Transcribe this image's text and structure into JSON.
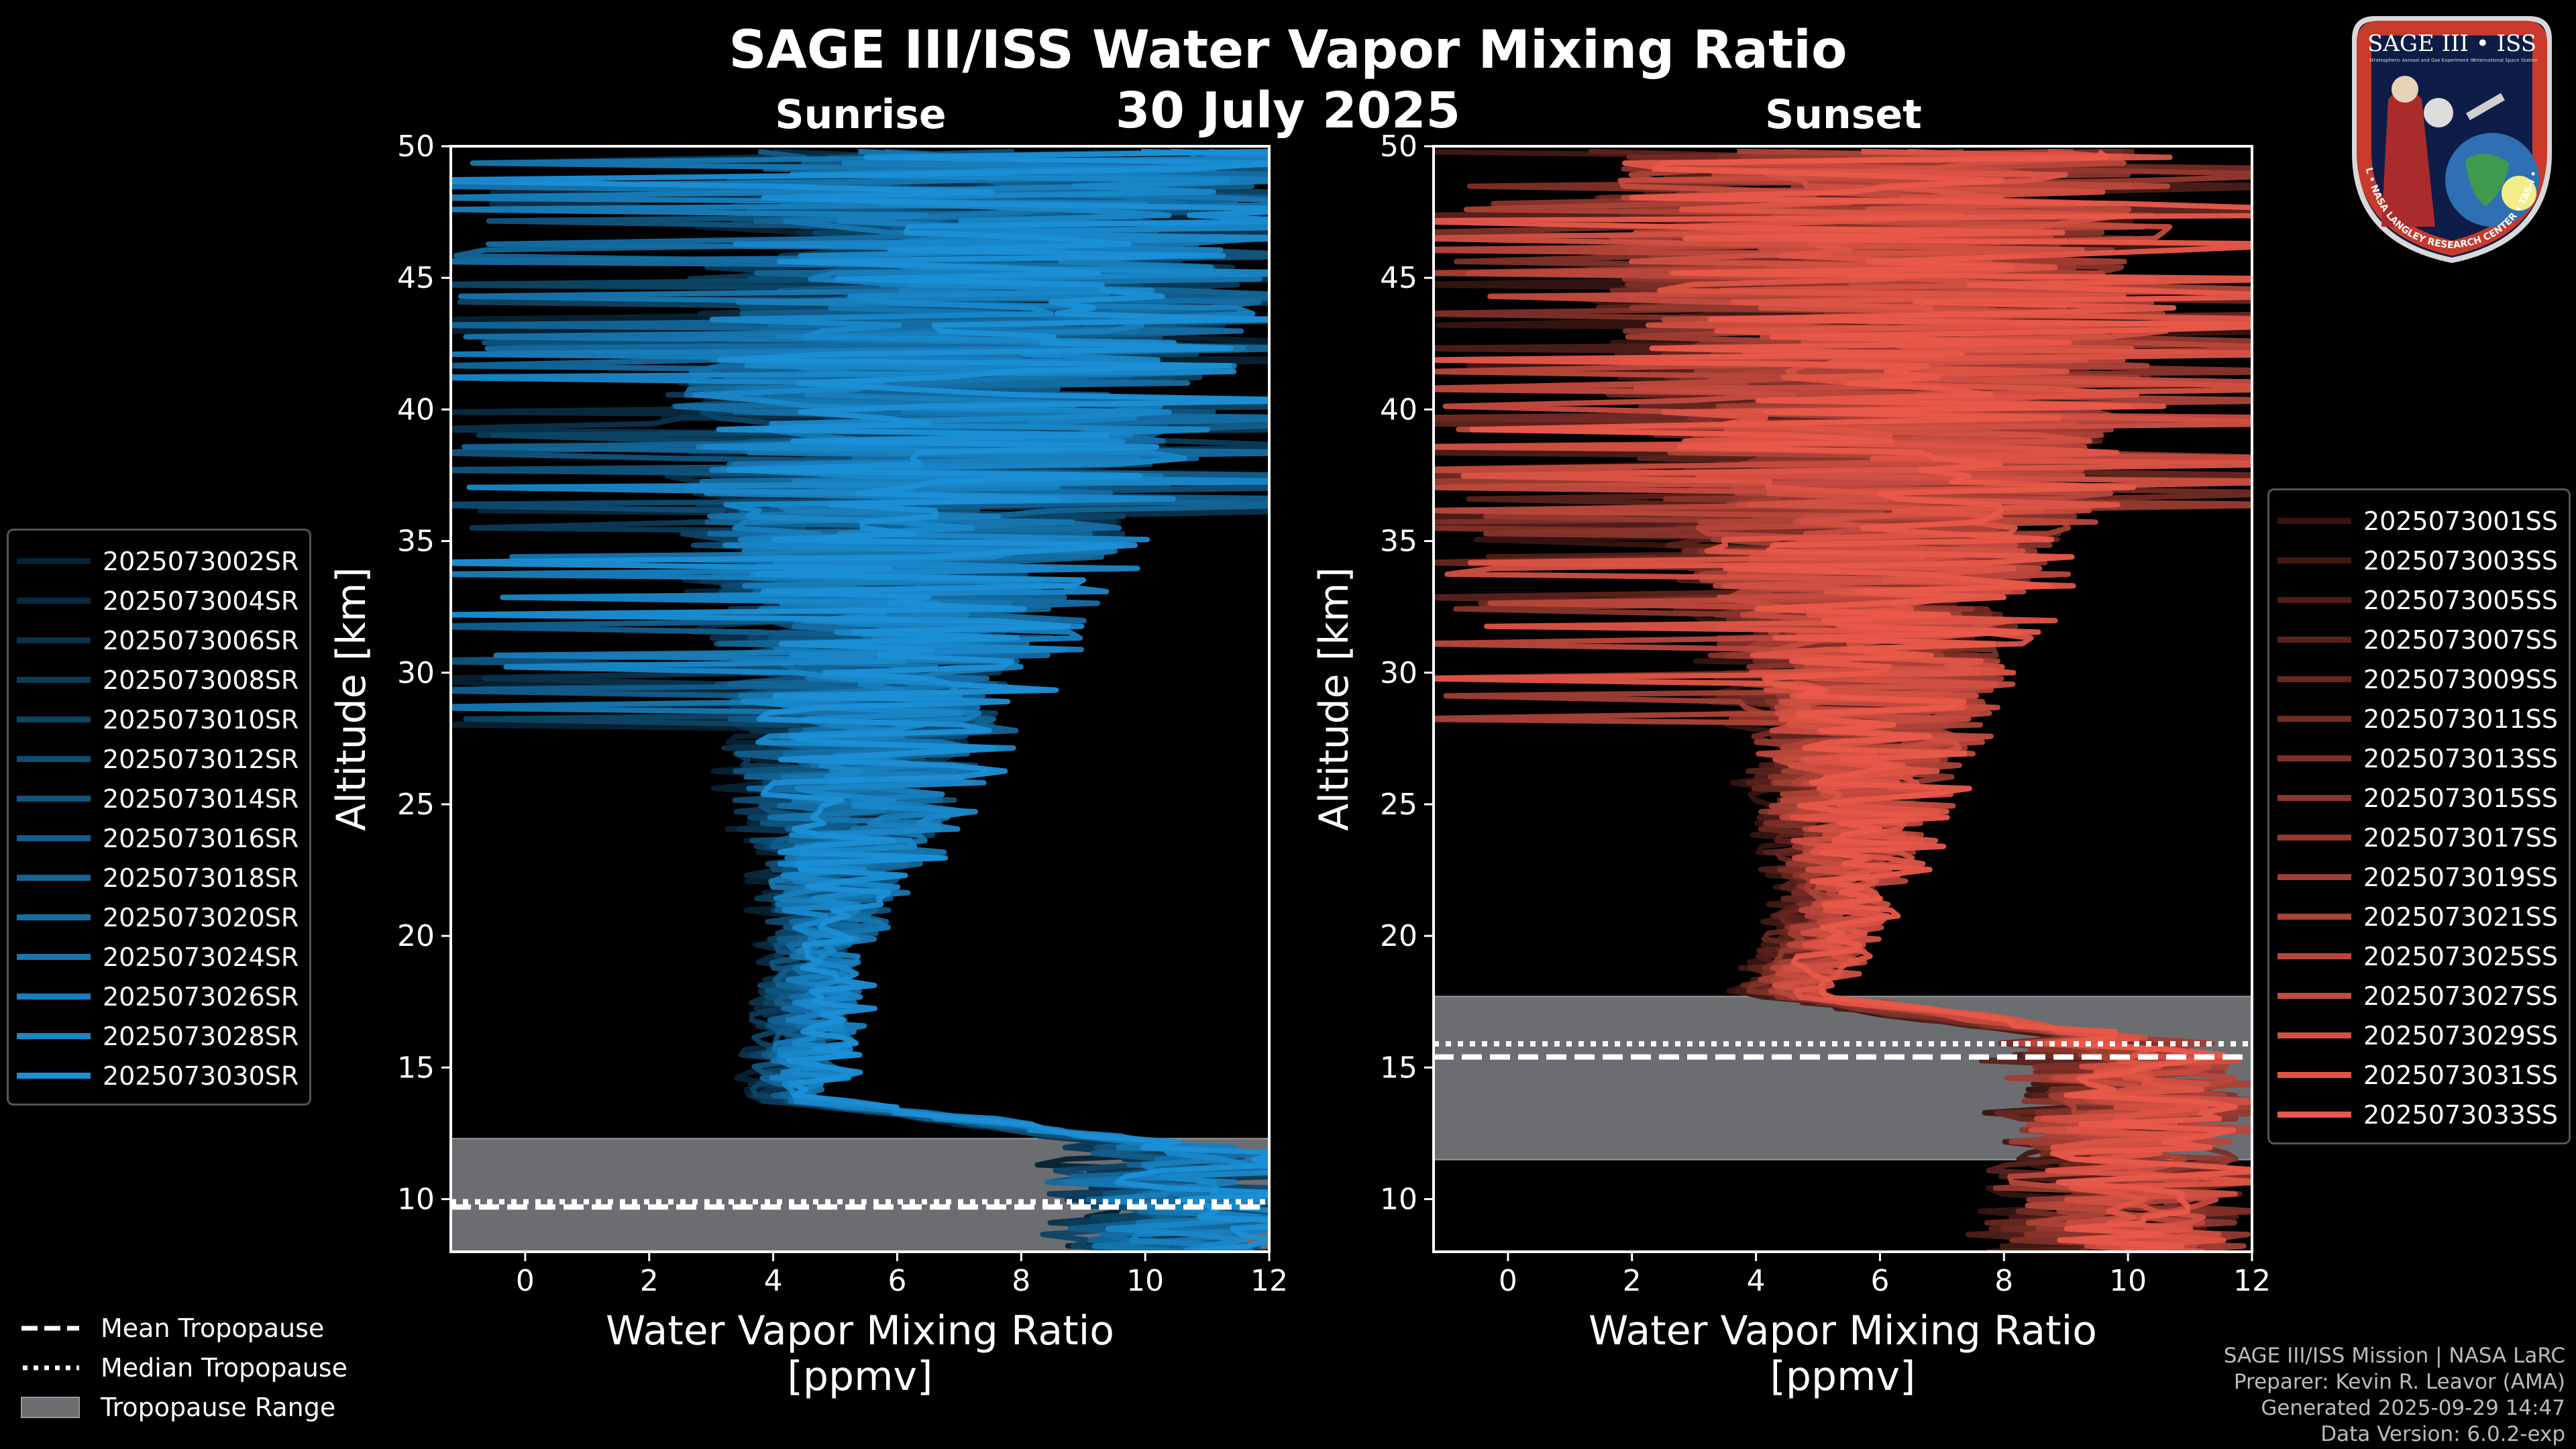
{
  "title": "SAGE III/ISS Water Vapor Mixing Ratio",
  "date": "30 July 2025",
  "colors": {
    "sunrise": "#1b8fd6",
    "sunset": "#e9594a",
    "range": "#6b6d70",
    "background": "#000000"
  },
  "chart_data": [
    {
      "type": "line",
      "title": "Sunrise",
      "xlabel": "Water Vapor Mixing Ratio\n[ppmv]",
      "xlabel_lines": [
        "Water Vapor Mixing Ratio",
        "[ppmv]"
      ],
      "ylabel": "Altitude [km]",
      "xlim": [
        -1.2,
        12
      ],
      "ylim": [
        8,
        50
      ],
      "xticks": [
        0,
        2,
        4,
        6,
        8,
        10,
        12
      ],
      "yticks": [
        10,
        15,
        20,
        25,
        30,
        35,
        40,
        45,
        50
      ],
      "series": [
        "2025073002SR",
        "2025073004SR",
        "2025073006SR",
        "2025073008SR",
        "2025073010SR",
        "2025073012SR",
        "2025073014SR",
        "2025073016SR",
        "2025073018SR",
        "2025073020SR",
        "2025073024SR",
        "2025073026SR",
        "2025073028SR",
        "2025073030SR"
      ],
      "profile": {
        "tropopause_x": 4.3,
        "tropopause_y": 13,
        "mid_x": 4.8,
        "mid_y": 20,
        "high_x": 6.8,
        "top_x": 8,
        "lower_x": 10.5
      },
      "tropopause": {
        "mean": 9.7,
        "median": 9.9,
        "range": [
          8,
          12.3
        ]
      }
    },
    {
      "type": "line",
      "title": "Sunset",
      "xlabel": "Water Vapor Mixing Ratio\n[ppmv]",
      "xlabel_lines": [
        "Water Vapor Mixing Ratio",
        "[ppmv]"
      ],
      "ylabel": "Altitude [km]",
      "xlim": [
        -1.2,
        12
      ],
      "ylim": [
        8,
        50
      ],
      "xticks": [
        0,
        2,
        4,
        6,
        8,
        10,
        12
      ],
      "yticks": [
        10,
        15,
        20,
        25,
        30,
        35,
        40,
        45,
        50
      ],
      "series": [
        "2025073001SS",
        "2025073003SS",
        "2025073005SS",
        "2025073007SS",
        "2025073009SS",
        "2025073011SS",
        "2025073013SS",
        "2025073015SS",
        "2025073017SS",
        "2025073019SS",
        "2025073021SS",
        "2025073025SS",
        "2025073027SS",
        "2025073029SS",
        "2025073031SS",
        "2025073033SS"
      ],
      "profile": {
        "tropopause_x": 4.5,
        "tropopause_y": 17,
        "mid_x": 5.4,
        "mid_y": 22,
        "high_x": 6.2,
        "top_x": 6,
        "lower_x": 10
      },
      "tropopause": {
        "mean": 15.4,
        "median": 15.9,
        "range": [
          11.5,
          17.7
        ]
      }
    }
  ],
  "legend_bottom": [
    {
      "label": "Mean Tropopause",
      "style": "dashed"
    },
    {
      "label": "Median Tropopause",
      "style": "dotted"
    },
    {
      "label": "Tropopause Range",
      "style": "patch"
    }
  ],
  "credits": [
    "SAGE III/ISS Mission | NASA LaRC",
    "Preparer: Kevin R. Leavor (AMA)",
    "Generated 2025-09-29 14:47",
    "Data Version: 6.0.2-exp"
  ],
  "logo": {
    "title": "SAGE III • ISS",
    "ring_text": "BALL • NASA LANGLEY RESEARCH CENTER • TAS-I • ESA",
    "small_left": "Stratospheric Aerosol and Gas Experiment III",
    "small_right": "International Space Station"
  }
}
